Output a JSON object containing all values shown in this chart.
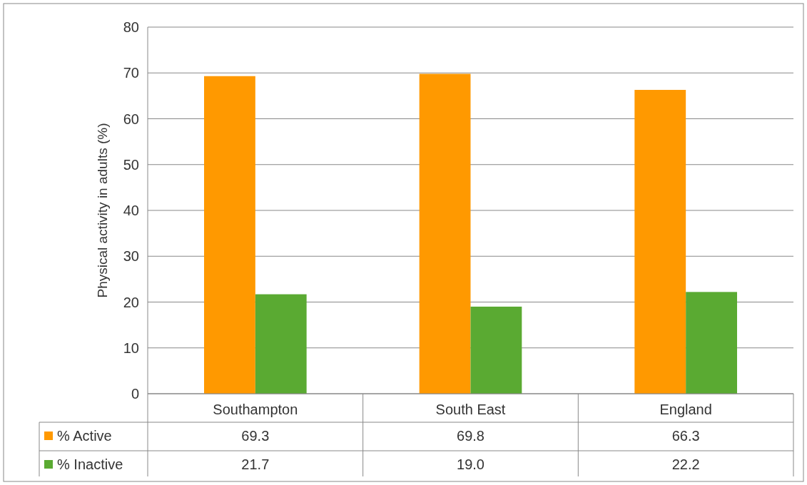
{
  "chart_data": {
    "type": "bar",
    "ylabel": "Physical activity in adults (%)",
    "categories": [
      "Southampton",
      "South East",
      "England"
    ],
    "series": [
      {
        "name": "% Active",
        "color": "#ff9900",
        "values": [
          69.3,
          69.8,
          66.3
        ],
        "value_labels": [
          "69.3",
          "69.8",
          "66.3"
        ]
      },
      {
        "name": "% Inactive",
        "color": "#5aaa32",
        "values": [
          21.7,
          19.0,
          22.2
        ],
        "value_labels": [
          "21.7",
          "19.0",
          "22.2"
        ]
      }
    ],
    "ylim": [
      0,
      80
    ],
    "yticks": [
      0,
      10,
      20,
      30,
      40,
      50,
      60,
      70,
      80
    ],
    "grid": "y",
    "legend": "bottom"
  }
}
